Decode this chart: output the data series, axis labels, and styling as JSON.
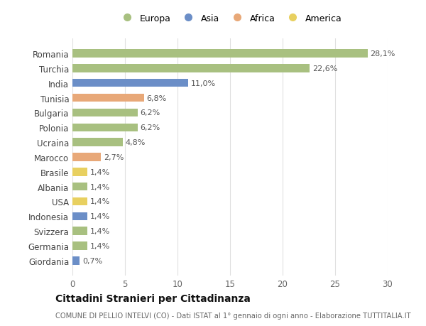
{
  "countries": [
    "Romania",
    "Turchia",
    "India",
    "Tunisia",
    "Bulgaria",
    "Polonia",
    "Ucraina",
    "Marocco",
    "Brasile",
    "Albania",
    "USA",
    "Indonesia",
    "Svizzera",
    "Germania",
    "Giordania"
  ],
  "values": [
    28.1,
    22.6,
    11.0,
    6.8,
    6.2,
    6.2,
    4.8,
    2.7,
    1.4,
    1.4,
    1.4,
    1.4,
    1.4,
    1.4,
    0.7
  ],
  "labels": [
    "28,1%",
    "22,6%",
    "11,0%",
    "6,8%",
    "6,2%",
    "6,2%",
    "4,8%",
    "2,7%",
    "1,4%",
    "1,4%",
    "1,4%",
    "1,4%",
    "1,4%",
    "1,4%",
    "0,7%"
  ],
  "continents": [
    "Europa",
    "Europa",
    "Asia",
    "Africa",
    "Europa",
    "Europa",
    "Europa",
    "Africa",
    "America",
    "Europa",
    "America",
    "Asia",
    "Europa",
    "Europa",
    "Asia"
  ],
  "colors": {
    "Europa": "#a8c080",
    "Asia": "#6b8ec7",
    "Africa": "#e8a878",
    "America": "#e8d060"
  },
  "xlim": [
    0,
    30
  ],
  "xticks": [
    0,
    5,
    10,
    15,
    20,
    25,
    30
  ],
  "title": "Cittadini Stranieri per Cittadinanza",
  "subtitle": "COMUNE DI PELLIO INTELVI (CO) - Dati ISTAT al 1° gennaio di ogni anno - Elaborazione TUTTITALIA.IT",
  "bg_color": "#ffffff",
  "grid_color": "#e0e0e0",
  "legend_order": [
    "Europa",
    "Asia",
    "Africa",
    "America"
  ]
}
